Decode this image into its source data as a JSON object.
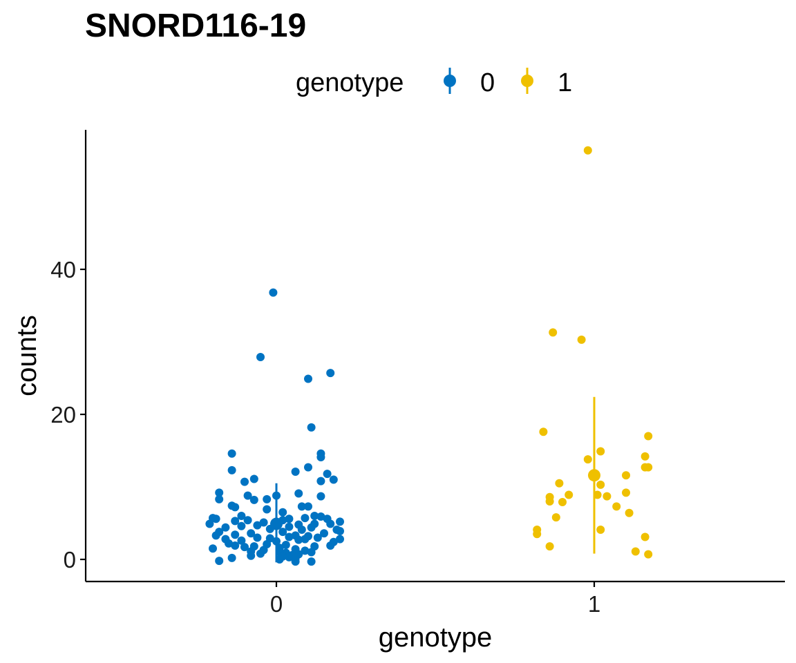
{
  "chart_data": {
    "type": "scatter",
    "title": "SNORD116-19",
    "xlabel": "genotype",
    "ylabel": "counts",
    "categories": [
      "0",
      "1"
    ],
    "yticks": [
      0,
      20,
      40
    ],
    "ylim": [
      -3,
      59
    ],
    "legend": {
      "title": "genotype",
      "position": "top",
      "entries": [
        "0",
        "1"
      ]
    },
    "colors": {
      "0": "#0073C2",
      "1": "#EFC000"
    },
    "grid": false,
    "series": [
      {
        "name": "0",
        "summary": {
          "mean": 4.9,
          "low": -0.4,
          "high": 10.5
        },
        "points": [
          [
            -0.01,
            36.8
          ],
          [
            -0.05,
            27.9
          ],
          [
            0.17,
            25.7
          ],
          [
            0.1,
            24.9
          ],
          [
            0.11,
            18.2
          ],
          [
            -0.14,
            14.6
          ],
          [
            0.14,
            14.6
          ],
          [
            0.14,
            14.1
          ],
          [
            -0.14,
            12.3
          ],
          [
            0.06,
            12.1
          ],
          [
            0.16,
            11.8
          ],
          [
            -0.07,
            11.1
          ],
          [
            0.18,
            11.0
          ],
          [
            0.14,
            10.8
          ],
          [
            -0.1,
            10.7
          ],
          [
            0.1,
            12.7
          ],
          [
            -0.18,
            9.2
          ],
          [
            0.07,
            9.1
          ],
          [
            -0.09,
            8.8
          ],
          [
            0.14,
            8.7
          ],
          [
            0.0,
            8.8
          ],
          [
            -0.18,
            8.3
          ],
          [
            -0.07,
            8.2
          ],
          [
            -0.03,
            8.3
          ],
          [
            -0.14,
            7.4
          ],
          [
            0.08,
            7.3
          ],
          [
            -0.13,
            7.2
          ],
          [
            0.1,
            7.3
          ],
          [
            -0.03,
            6.9
          ],
          [
            0.02,
            6.5
          ],
          [
            -0.11,
            6.0
          ],
          [
            0.12,
            6.0
          ],
          [
            0.14,
            5.9
          ],
          [
            0.16,
            5.6
          ],
          [
            -0.19,
            5.6
          ],
          [
            -0.2,
            5.7
          ],
          [
            0.09,
            5.7
          ],
          [
            0.04,
            5.6
          ],
          [
            -0.09,
            5.4
          ],
          [
            0.02,
            5.4
          ],
          [
            -0.13,
            5.3
          ],
          [
            0.2,
            5.2
          ],
          [
            -0.04,
            5.1
          ],
          [
            0.0,
            5.0
          ],
          [
            0.12,
            4.9
          ],
          [
            -0.21,
            4.9
          ],
          [
            0.17,
            4.9
          ],
          [
            0.07,
            4.8
          ],
          [
            -0.06,
            4.7
          ],
          [
            -0.11,
            4.6
          ],
          [
            0.04,
            4.5
          ],
          [
            0.11,
            4.4
          ],
          [
            -0.16,
            4.4
          ],
          [
            -0.02,
            4.2
          ],
          [
            0.08,
            4.1
          ],
          [
            0.19,
            4.1
          ],
          [
            0.2,
            3.9
          ],
          [
            -0.18,
            3.8
          ],
          [
            0.02,
            3.8
          ],
          [
            -0.08,
            3.6
          ],
          [
            0.15,
            3.6
          ],
          [
            -0.13,
            3.4
          ],
          [
            0.06,
            3.3
          ],
          [
            -0.19,
            3.3
          ],
          [
            0.1,
            3.2
          ],
          [
            0.04,
            3.1
          ],
          [
            0.13,
            3.0
          ],
          [
            -0.06,
            3.0
          ],
          [
            -0.02,
            2.9
          ],
          [
            0.09,
            2.8
          ],
          [
            0.2,
            2.8
          ],
          [
            -0.16,
            2.8
          ],
          [
            0.07,
            2.7
          ],
          [
            -0.11,
            2.6
          ],
          [
            0.0,
            2.5
          ],
          [
            0.18,
            2.4
          ],
          [
            -0.15,
            2.2
          ],
          [
            -0.03,
            2.1
          ],
          [
            0.03,
            2.0
          ],
          [
            -0.13,
            1.9
          ],
          [
            0.12,
            1.8
          ],
          [
            -0.07,
            1.8
          ],
          [
            0.17,
            1.9
          ],
          [
            -0.1,
            1.7
          ],
          [
            0.01,
            1.6
          ],
          [
            -0.2,
            1.5
          ],
          [
            0.06,
            1.4
          ],
          [
            -0.04,
            1.3
          ],
          [
            0.09,
            1.2
          ],
          [
            -0.08,
            1.1
          ],
          [
            0.01,
            1.0
          ],
          [
            0.11,
            1.0
          ],
          [
            0.03,
            0.9
          ],
          [
            -0.05,
            0.8
          ],
          [
            0.07,
            0.7
          ],
          [
            0.05,
            0.6
          ],
          [
            -0.08,
            0.5
          ],
          [
            0.02,
            0.4
          ],
          [
            0.04,
            0.3
          ],
          [
            -0.14,
            0.2
          ],
          [
            0.06,
            0.1
          ],
          [
            0.01,
            0.0
          ],
          [
            -0.18,
            -0.2
          ],
          [
            0.06,
            -0.3
          ],
          [
            0.11,
            -0.3
          ]
        ]
      },
      {
        "name": "1",
        "summary": {
          "mean": 11.6,
          "low": 0.8,
          "high": 22.4
        },
        "points": [
          [
            0.98,
            56.4
          ],
          [
            0.87,
            31.3
          ],
          [
            0.96,
            30.3
          ],
          [
            0.84,
            17.6
          ],
          [
            1.17,
            17.0
          ],
          [
            1.02,
            14.9
          ],
          [
            0.98,
            13.8
          ],
          [
            1.16,
            14.2
          ],
          [
            1.16,
            12.7
          ],
          [
            1.17,
            12.7
          ],
          [
            1.1,
            11.6
          ],
          [
            0.89,
            10.5
          ],
          [
            1.02,
            10.3
          ],
          [
            1.1,
            9.2
          ],
          [
            0.92,
            8.9
          ],
          [
            1.01,
            8.9
          ],
          [
            1.04,
            8.7
          ],
          [
            0.86,
            8.6
          ],
          [
            0.86,
            8.0
          ],
          [
            0.9,
            7.9
          ],
          [
            1.07,
            7.3
          ],
          [
            1.11,
            6.4
          ],
          [
            0.88,
            5.8
          ],
          [
            1.02,
            4.1
          ],
          [
            0.82,
            4.1
          ],
          [
            0.82,
            3.5
          ],
          [
            1.16,
            3.1
          ],
          [
            0.86,
            1.8
          ],
          [
            1.13,
            1.1
          ],
          [
            1.17,
            0.7
          ]
        ]
      }
    ]
  }
}
